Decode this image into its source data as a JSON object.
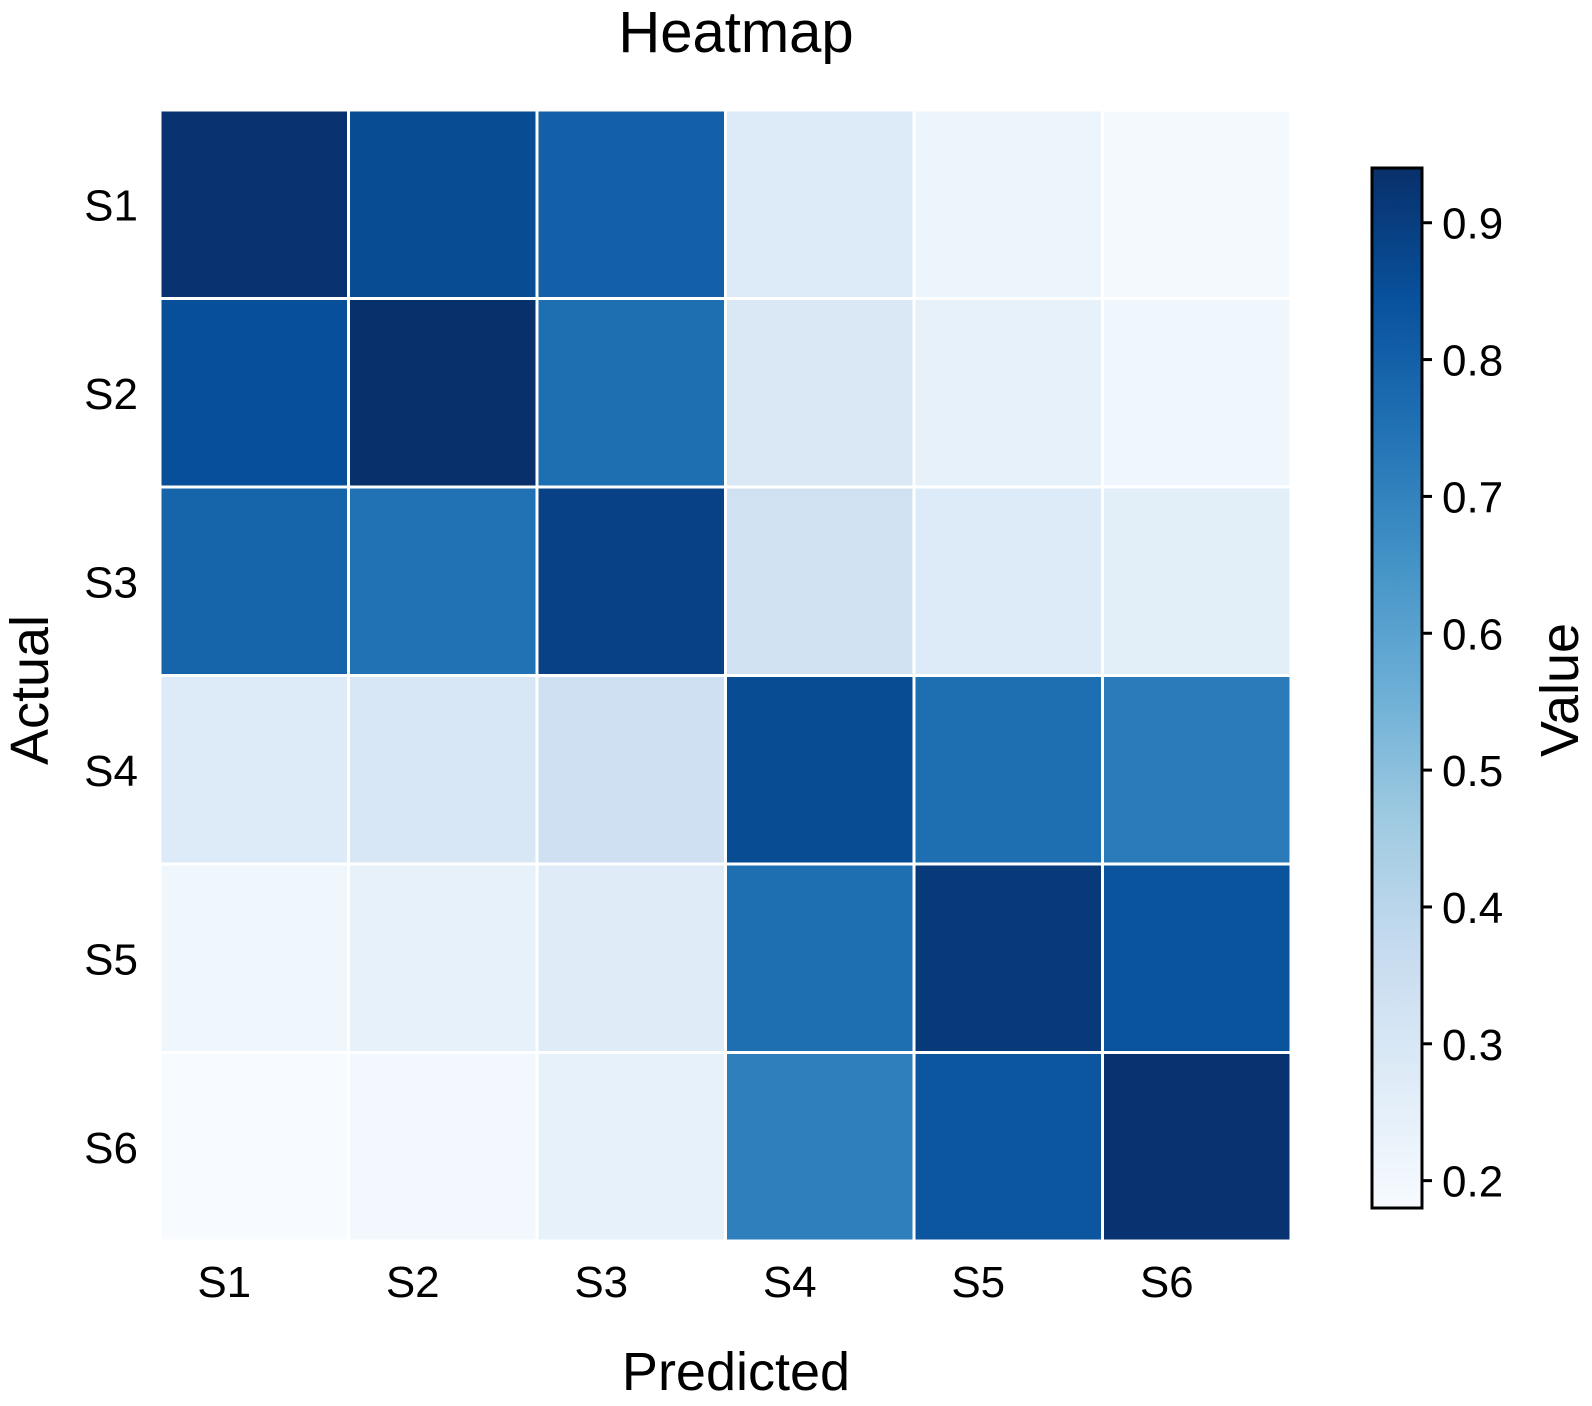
{
  "chart_data": {
    "type": "heatmap",
    "title": "Heatmap",
    "xlabel": "Predicted",
    "ylabel": "Actual",
    "x_categories": [
      "S1",
      "S2",
      "S3",
      "S4",
      "S5",
      "S6"
    ],
    "y_categories": [
      "S1",
      "S2",
      "S3",
      "S4",
      "S5",
      "S6"
    ],
    "values": [
      [
        0.93,
        0.86,
        0.8,
        0.28,
        0.22,
        0.19
      ],
      [
        0.85,
        0.94,
        0.76,
        0.29,
        0.24,
        0.21
      ],
      [
        0.79,
        0.75,
        0.89,
        0.33,
        0.28,
        0.26
      ],
      [
        0.28,
        0.3,
        0.34,
        0.86,
        0.76,
        0.72
      ],
      [
        0.21,
        0.24,
        0.27,
        0.76,
        0.91,
        0.84
      ],
      [
        0.18,
        0.2,
        0.24,
        0.71,
        0.83,
        0.93
      ]
    ],
    "colorbar": {
      "label": "Value",
      "range": [
        0.18,
        0.94
      ],
      "ticks": [
        0.2,
        0.3,
        0.4,
        0.5,
        0.6,
        0.7,
        0.8,
        0.9
      ],
      "tick_labels": [
        "0.2",
        "0.3",
        "0.4",
        "0.5",
        "0.6",
        "0.7",
        "0.8",
        "0.9"
      ],
      "colormap": "Blues",
      "colors": [
        "#f7fbff",
        "#deebf7",
        "#c6dbef",
        "#9ecae1",
        "#6baed6",
        "#4292c6",
        "#2171b5",
        "#08519c",
        "#08306b"
      ]
    },
    "cell_border_color": "#ffffff",
    "grid": false
  }
}
